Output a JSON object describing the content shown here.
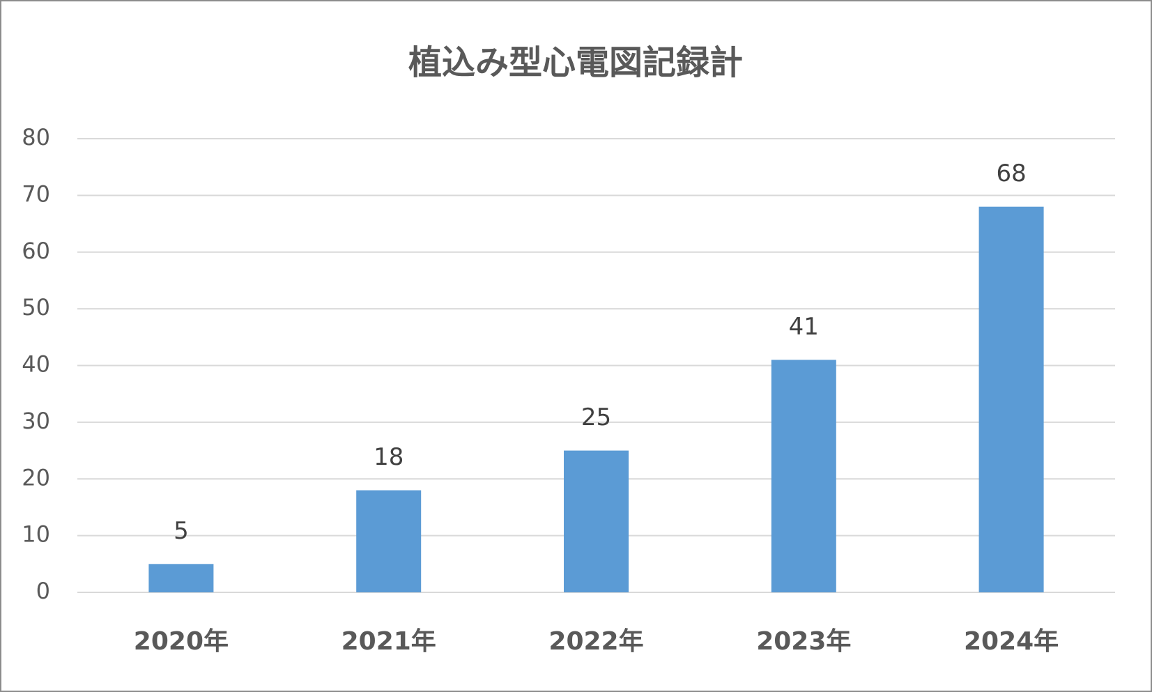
{
  "chart_data": {
    "type": "bar",
    "title": "植込み型心電図記録計",
    "categories": [
      "2020年",
      "2021年",
      "2022年",
      "2023年",
      "2024年"
    ],
    "values": [
      5,
      18,
      25,
      41,
      68
    ],
    "color": "#5b9bd5",
    "ylim": [
      0,
      80
    ],
    "yticks": [
      0,
      10,
      20,
      30,
      40,
      50,
      60,
      70,
      80
    ],
    "grid": true
  }
}
